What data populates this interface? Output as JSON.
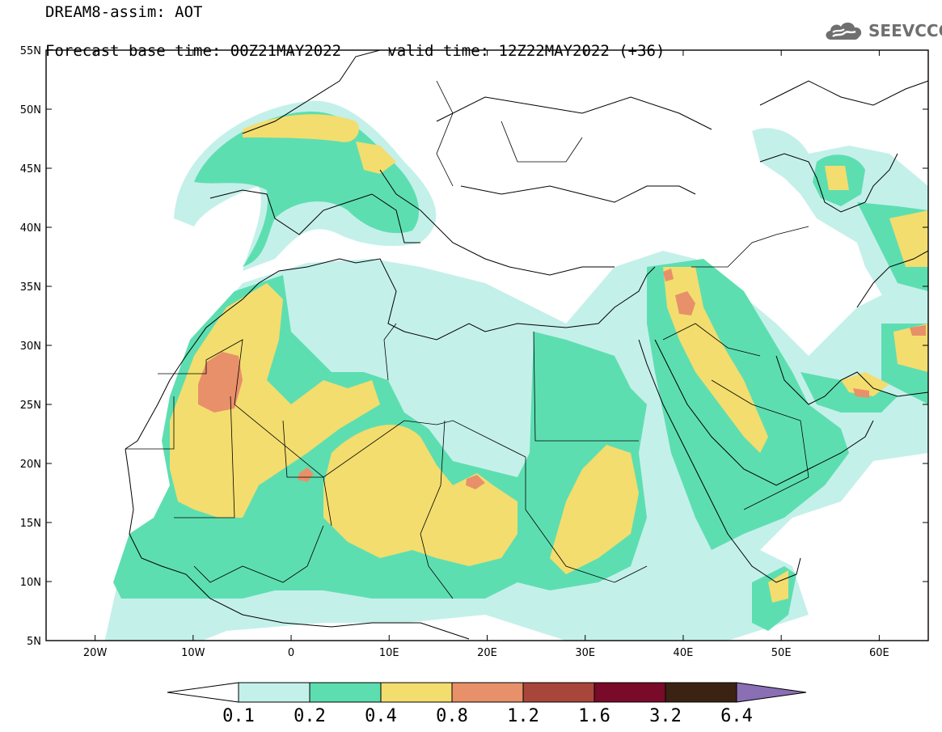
{
  "header": {
    "model_line": "DREAM8-assim: AOT",
    "base_time": "Forecast base time: 00Z21MAY2022",
    "valid_time": "valid time: 12Z22MAY2022 (+36)"
  },
  "logo": {
    "text": "SEEVCCC",
    "icon": "cloud-icon"
  },
  "map": {
    "lon_range": [
      -25,
      65
    ],
    "lat_range": [
      5,
      55
    ],
    "lat_ticks": [
      "5N",
      "10N",
      "15N",
      "20N",
      "25N",
      "30N",
      "35N",
      "40N",
      "45N",
      "50N",
      "55N"
    ],
    "lon_ticks": [
      "20W",
      "10W",
      "0",
      "10E",
      "20E",
      "30E",
      "40E",
      "50E",
      "60E"
    ]
  },
  "colorbar": {
    "labels": [
      "0.1",
      "0.2",
      "0.4",
      "0.8",
      "1.2",
      "1.6",
      "3.2",
      "6.4"
    ],
    "colors": [
      "#c4f0ea",
      "#5ddeb1",
      "#f3dd6e",
      "#e8906a",
      "#a8463c",
      "#7a0a2a",
      "#3b2313",
      "#8a6fb5"
    ],
    "left_arrow_color": "#ffffff"
  },
  "chart_data": {
    "type": "heatmap",
    "variable": "AOT",
    "levels": [
      0.1,
      0.2,
      0.4,
      0.8,
      1.2,
      1.6,
      3.2,
      6.4
    ],
    "xlim": [
      -25,
      65
    ],
    "ylim": [
      5,
      55
    ]
  }
}
